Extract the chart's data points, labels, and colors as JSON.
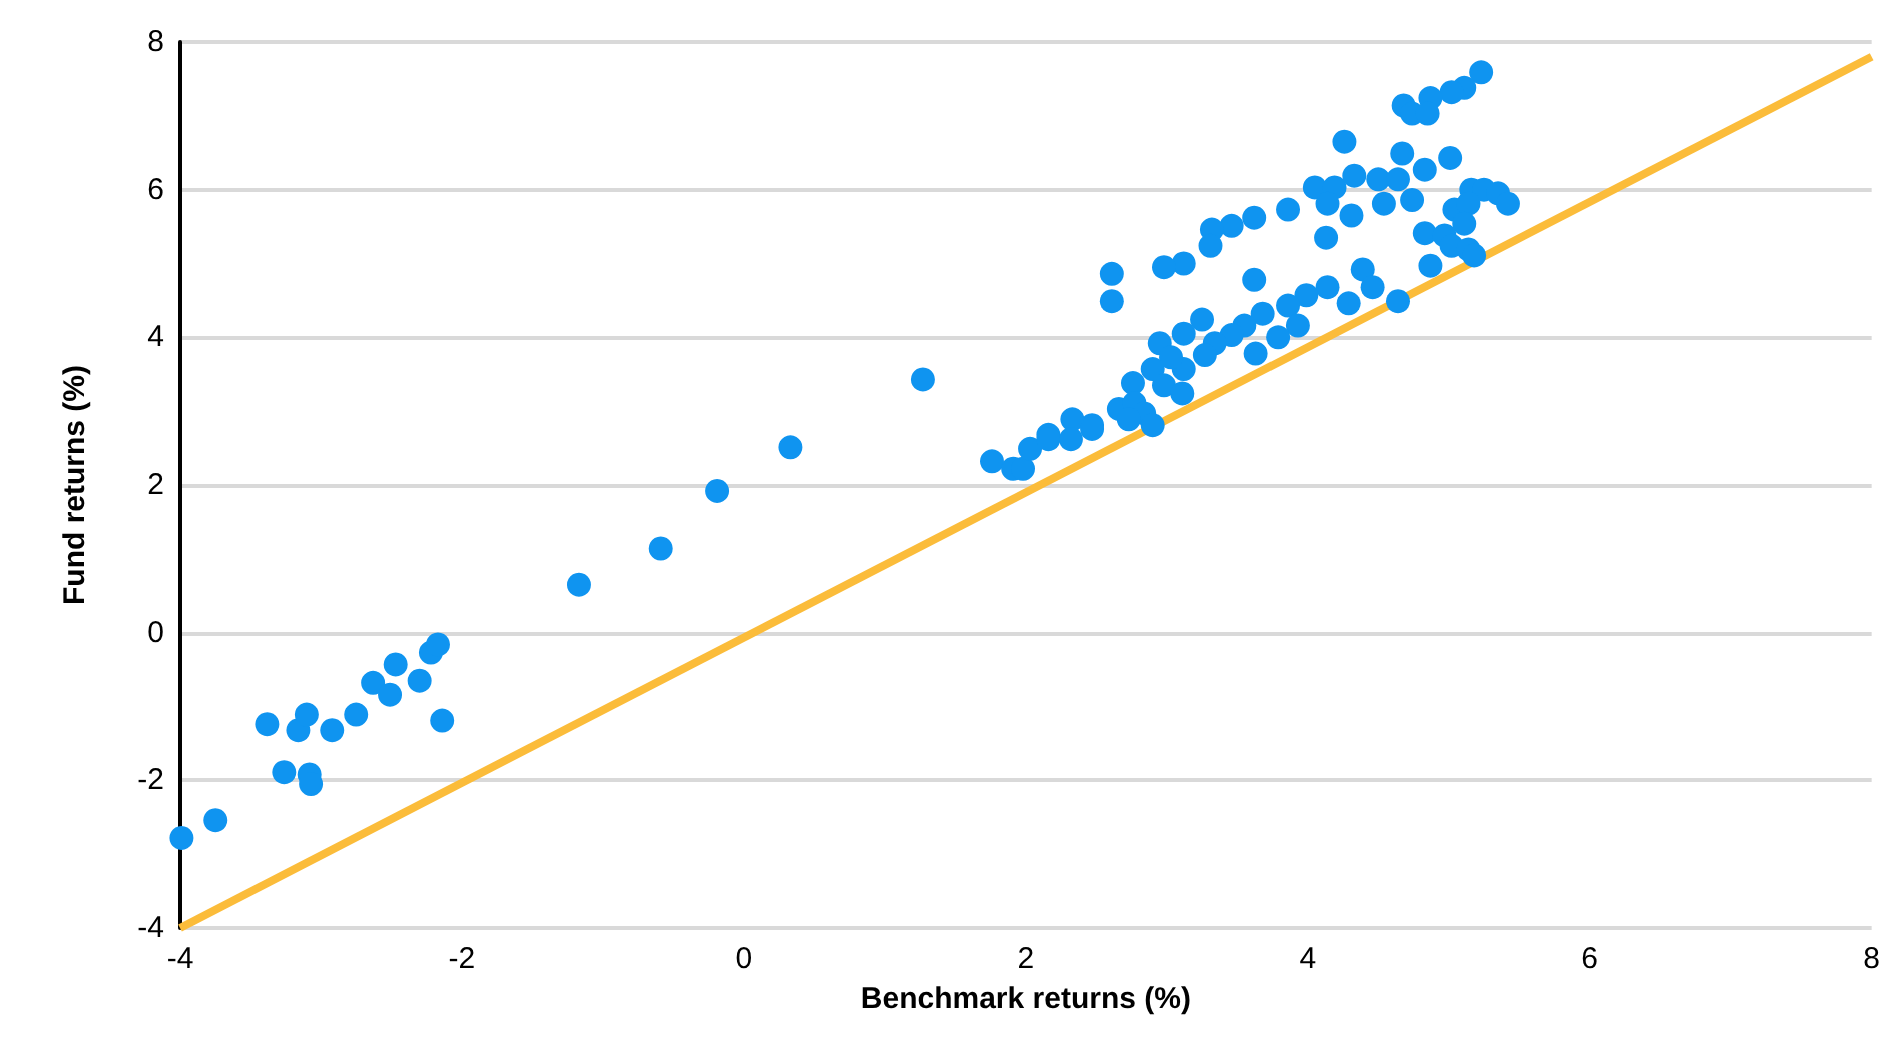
{
  "chart_data": {
    "type": "scatter",
    "xlabel": "Benchmark returns (%)",
    "ylabel": "Fund returns (%)",
    "xlim": [
      -4,
      8
    ],
    "xticks": [
      -4,
      -2,
      0,
      2,
      4,
      6,
      8
    ],
    "ylim": [
      -4,
      8
    ],
    "yticks": [
      -4,
      -2,
      0,
      2,
      4,
      6,
      8
    ],
    "grid": "y",
    "marker": "circle",
    "series": [
      {
        "color": "#0f94f0",
        "x": [
          -3.99,
          -3.75,
          -3.38,
          -3.26,
          -3.16,
          -3.1,
          -3.08,
          -3.07,
          -2.92,
          -2.75,
          -2.63,
          -2.51,
          -2.47,
          -2.3,
          -2.22,
          -2.17,
          -2.14,
          -1.17,
          -0.59,
          -0.19,
          0.33,
          1.27,
          5.23,
          5.11,
          5.02,
          4.87,
          4.68,
          4.74,
          4.85,
          4.26,
          5.01,
          4.67,
          4.83,
          4.05,
          4.19,
          4.33,
          4.5,
          4.64,
          4.14,
          4.54,
          4.74,
          4.31,
          5.16,
          5.25,
          5.35,
          5.42,
          5.04,
          5.14,
          5.11,
          3.86,
          3.62,
          3.46,
          3.32,
          3.31,
          3.12,
          2.98,
          2.61,
          2.61,
          4.13,
          4.83,
          4.97,
          5.02,
          5.14,
          4.87,
          5.18,
          4.39,
          4.46,
          4.14,
          3.62,
          4.29,
          4.64,
          3.99,
          3.86,
          3.93,
          3.68,
          3.63,
          3.79,
          3.55,
          3.46,
          3.25,
          3.12,
          2.95,
          3.34,
          3.27,
          3.12,
          3.03,
          2.9,
          2.98,
          3.11,
          2.76,
          2.66,
          2.77,
          2.84,
          2.9,
          2.73,
          2.47,
          2.16,
          1.76,
          1.91,
          1.98,
          2.03,
          2.16,
          2.33,
          2.32,
          2.47
        ],
        "values": [
          -2.78,
          -2.54,
          -1.24,
          -1.89,
          -1.32,
          -1.11,
          -1.92,
          -2.05,
          -1.32,
          -1.11,
          -0.68,
          -0.84,
          -0.43,
          -0.65,
          -0.27,
          -0.16,
          -1.19,
          0.65,
          1.14,
          1.92,
          2.51,
          3.43,
          7.59,
          7.38,
          7.32,
          7.24,
          7.14,
          7.03,
          7.03,
          6.65,
          6.43,
          6.49,
          6.27,
          6.03,
          6.03,
          6.19,
          6.14,
          6.14,
          5.81,
          5.81,
          5.86,
          5.65,
          6.0,
          6.0,
          5.95,
          5.81,
          5.73,
          5.81,
          5.54,
          5.73,
          5.62,
          5.51,
          5.46,
          5.24,
          5.0,
          4.95,
          4.86,
          4.49,
          5.35,
          5.41,
          5.38,
          5.24,
          5.19,
          4.97,
          5.11,
          4.92,
          4.68,
          4.68,
          4.78,
          4.46,
          4.49,
          4.57,
          4.43,
          4.16,
          4.32,
          3.78,
          4.0,
          4.16,
          4.03,
          4.24,
          4.05,
          3.92,
          3.92,
          3.76,
          3.57,
          3.73,
          3.57,
          3.35,
          3.24,
          3.38,
          3.03,
          3.11,
          2.97,
          2.81,
          2.89,
          2.81,
          2.68,
          2.32,
          2.22,
          2.22,
          2.49,
          2.62,
          2.89,
          2.62,
          2.76
        ]
      },
      {
        "type": "line",
        "marker": "none",
        "color": "#fbbc3a",
        "x": [
          -4,
          8
        ],
        "values": [
          -4,
          7.8
        ]
      }
    ]
  }
}
